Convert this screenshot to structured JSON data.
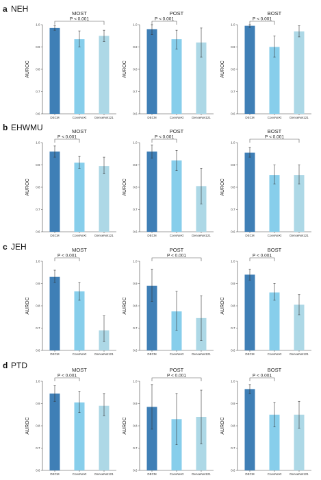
{
  "chart_data": [
    {
      "row": "a",
      "row_title": "NEH",
      "type": "bar",
      "title": "MOST",
      "ylabel": "AUROC",
      "ylim": [
        0.6,
        1.0
      ],
      "yticks": [
        0.6,
        0.7,
        0.8,
        0.9,
        1.0
      ],
      "categories": [
        "DECM",
        "ConvNeXt",
        "DenseNet121"
      ],
      "values": [
        0.985,
        0.935,
        0.95
      ],
      "errors": [
        [
          0.975,
          0.995
        ],
        [
          0.9,
          0.972
        ],
        [
          0.925,
          0.975
        ]
      ],
      "colors": [
        "#3F7FB6",
        "#87CEEB",
        "#ADD8E6"
      ],
      "significance": [
        {
          "from": 0,
          "to": 2,
          "label": "P < 0.001"
        }
      ]
    },
    {
      "row": "a",
      "row_title": "NEH",
      "type": "bar",
      "title": "POST",
      "ylabel": "AUROC",
      "ylim": [
        0.6,
        1.0
      ],
      "yticks": [
        0.6,
        0.7,
        0.8,
        0.9,
        1.0
      ],
      "categories": [
        "DECM",
        "ConvNeXt",
        "DenseNet121"
      ],
      "values": [
        0.98,
        0.935,
        0.92
      ],
      "errors": [
        [
          0.955,
          1.0
        ],
        [
          0.89,
          0.975
        ],
        [
          0.855,
          0.985
        ]
      ],
      "colors": [
        "#3F7FB6",
        "#87CEEB",
        "#ADD8E6"
      ],
      "significance": [
        {
          "from": 0,
          "to": 1,
          "label": "P < 0.001"
        }
      ]
    },
    {
      "row": "a",
      "row_title": "NEH",
      "type": "bar",
      "title": "BOST",
      "ylabel": "AUROC",
      "ylim": [
        0.6,
        1.0
      ],
      "yticks": [
        0.6,
        0.7,
        0.8,
        0.9,
        1.0
      ],
      "categories": [
        "DECM",
        "ConvNeXt",
        "DenseNet121"
      ],
      "values": [
        0.995,
        0.9,
        0.97
      ],
      "errors": [
        [
          0.988,
          1.0
        ],
        [
          0.855,
          0.95
        ],
        [
          0.945,
          0.995
        ]
      ],
      "colors": [
        "#3F7FB6",
        "#87CEEB",
        "#ADD8E6"
      ],
      "significance": [
        {
          "from": 0,
          "to": 1,
          "label": "P < 0.001"
        }
      ]
    },
    {
      "row": "b",
      "row_title": "EHWMU",
      "type": "bar",
      "title": "MOST",
      "ylabel": "AUROC",
      "ylim": [
        0.6,
        1.0
      ],
      "yticks": [
        0.6,
        0.7,
        0.8,
        0.9,
        1.0
      ],
      "categories": [
        "DECM",
        "ConvNeXt",
        "DenseNet121"
      ],
      "values": [
        0.96,
        0.91,
        0.895
      ],
      "errors": [
        [
          0.935,
          0.985
        ],
        [
          0.885,
          0.938
        ],
        [
          0.86,
          0.935
        ]
      ],
      "colors": [
        "#3F7FB6",
        "#87CEEB",
        "#ADD8E6"
      ],
      "significance": [
        {
          "from": 0,
          "to": 1,
          "label": "P < 0.001"
        }
      ]
    },
    {
      "row": "b",
      "row_title": "EHWMU",
      "type": "bar",
      "title": "POST",
      "ylabel": "AUROC",
      "ylim": [
        0.6,
        1.0
      ],
      "yticks": [
        0.6,
        0.7,
        0.8,
        0.9,
        1.0
      ],
      "categories": [
        "DECM",
        "ConvNeXt",
        "DenseNet121"
      ],
      "values": [
        0.96,
        0.92,
        0.805
      ],
      "errors": [
        [
          0.93,
          0.99
        ],
        [
          0.875,
          0.965
        ],
        [
          0.725,
          0.885
        ]
      ],
      "colors": [
        "#3F7FB6",
        "#87CEEB",
        "#ADD8E6"
      ],
      "significance": [
        {
          "from": 0,
          "to": 1,
          "label": "P < 0.001"
        }
      ]
    },
    {
      "row": "b",
      "row_title": "EHWMU",
      "type": "bar",
      "title": "BOST",
      "ylabel": "AUROC",
      "ylim": [
        0.6,
        1.0
      ],
      "yticks": [
        0.6,
        0.7,
        0.8,
        0.9,
        1.0
      ],
      "categories": [
        "DECM",
        "ConvNeXt",
        "DenseNet121"
      ],
      "values": [
        0.955,
        0.855,
        0.855
      ],
      "errors": [
        [
          0.935,
          0.978
        ],
        [
          0.815,
          0.9
        ],
        [
          0.815,
          0.9
        ]
      ],
      "colors": [
        "#3F7FB6",
        "#87CEEB",
        "#ADD8E6"
      ],
      "significance": [
        {
          "from": 0,
          "to": 2,
          "label": "P < 0.001"
        }
      ]
    },
    {
      "row": "c",
      "row_title": "JEH",
      "type": "bar",
      "title": "MOST",
      "ylabel": "AUROC",
      "ylim": [
        0.6,
        1.0
      ],
      "yticks": [
        0.6,
        0.7,
        0.8,
        0.9,
        1.0
      ],
      "categories": [
        "DECM",
        "ConvNeXt",
        "DenseNet121"
      ],
      "values": [
        0.93,
        0.865,
        0.69
      ],
      "errors": [
        [
          0.905,
          0.96
        ],
        [
          0.825,
          0.905
        ],
        [
          0.64,
          0.755
        ]
      ],
      "colors": [
        "#3F7FB6",
        "#87CEEB",
        "#ADD8E6"
      ],
      "significance": [
        {
          "from": 0,
          "to": 1,
          "label": "P < 0.001"
        }
      ]
    },
    {
      "row": "c",
      "row_title": "JEH",
      "type": "bar",
      "title": "POST",
      "ylabel": "AUROC",
      "ylim": [
        0.6,
        1.0
      ],
      "yticks": [
        0.6,
        0.7,
        0.8,
        0.9,
        1.0
      ],
      "categories": [
        "DECM",
        "ConvNeXt",
        "DenseNet121"
      ],
      "values": [
        0.89,
        0.775,
        0.745
      ],
      "errors": [
        [
          0.82,
          0.965
        ],
        [
          0.69,
          0.865
        ],
        [
          0.645,
          0.845
        ]
      ],
      "colors": [
        "#3F7FB6",
        "#87CEEB",
        "#ADD8E6"
      ],
      "significance": [
        {
          "from": 0,
          "to": 2,
          "label": "P < 0.001"
        }
      ]
    },
    {
      "row": "c",
      "row_title": "JEH",
      "type": "bar",
      "title": "BOST",
      "ylabel": "AUROC",
      "ylim": [
        0.6,
        1.0
      ],
      "yticks": [
        0.6,
        0.7,
        0.8,
        0.9,
        1.0
      ],
      "categories": [
        "DECM",
        "ConvNeXt",
        "DenseNet121"
      ],
      "values": [
        0.94,
        0.86,
        0.805
      ],
      "errors": [
        [
          0.915,
          0.965
        ],
        [
          0.825,
          0.9
        ],
        [
          0.76,
          0.85
        ]
      ],
      "colors": [
        "#3F7FB6",
        "#87CEEB",
        "#ADD8E6"
      ],
      "significance": [
        {
          "from": 0,
          "to": 1,
          "label": "P < 0.001"
        }
      ]
    },
    {
      "row": "d",
      "row_title": "PTD",
      "type": "bar",
      "title": "MOST",
      "ylabel": "AUROC",
      "ylim": [
        0.6,
        1.0
      ],
      "yticks": [
        0.6,
        0.7,
        0.8,
        0.9,
        1.0
      ],
      "categories": [
        "DECM",
        "ConvNeXt",
        "DenseNet121"
      ],
      "values": [
        0.945,
        0.905,
        0.89
      ],
      "errors": [
        [
          0.91,
          0.98
        ],
        [
          0.86,
          0.955
        ],
        [
          0.845,
          0.945
        ]
      ],
      "colors": [
        "#3F7FB6",
        "#87CEEB",
        "#ADD8E6"
      ],
      "significance": [
        {
          "from": 0,
          "to": 1,
          "label": "P < 0.001"
        }
      ]
    },
    {
      "row": "d",
      "row_title": "PTD",
      "type": "bar",
      "title": "POST",
      "ylabel": "AUROC",
      "ylim": [
        0.6,
        1.0
      ],
      "yticks": [
        0.6,
        0.7,
        0.8,
        0.9,
        1.0
      ],
      "categories": [
        "DECM",
        "ConvNeXt",
        "DenseNet121"
      ],
      "values": [
        0.885,
        0.83,
        0.84
      ],
      "errors": [
        [
          0.785,
          0.985
        ],
        [
          0.715,
          0.945
        ],
        [
          0.72,
          0.96
        ]
      ],
      "colors": [
        "#3F7FB6",
        "#87CEEB",
        "#ADD8E6"
      ],
      "significance": [
        {
          "from": 0,
          "to": 2,
          "label": "P < 0.001"
        }
      ]
    },
    {
      "row": "d",
      "row_title": "PTD",
      "type": "bar",
      "title": "BOST",
      "ylabel": "AUROC",
      "ylim": [
        0.6,
        1.0
      ],
      "yticks": [
        0.6,
        0.7,
        0.8,
        0.9,
        1.0
      ],
      "categories": [
        "DECM",
        "ConvNeXt",
        "DenseNet121"
      ],
      "values": [
        0.965,
        0.85,
        0.85
      ],
      "errors": [
        [
          0.945,
          0.985
        ],
        [
          0.795,
          0.905
        ],
        [
          0.79,
          0.91
        ]
      ],
      "colors": [
        "#3F7FB6",
        "#87CEEB",
        "#ADD8E6"
      ],
      "significance": [
        {
          "from": 0,
          "to": 1,
          "label": "P < 0.001"
        }
      ]
    }
  ]
}
